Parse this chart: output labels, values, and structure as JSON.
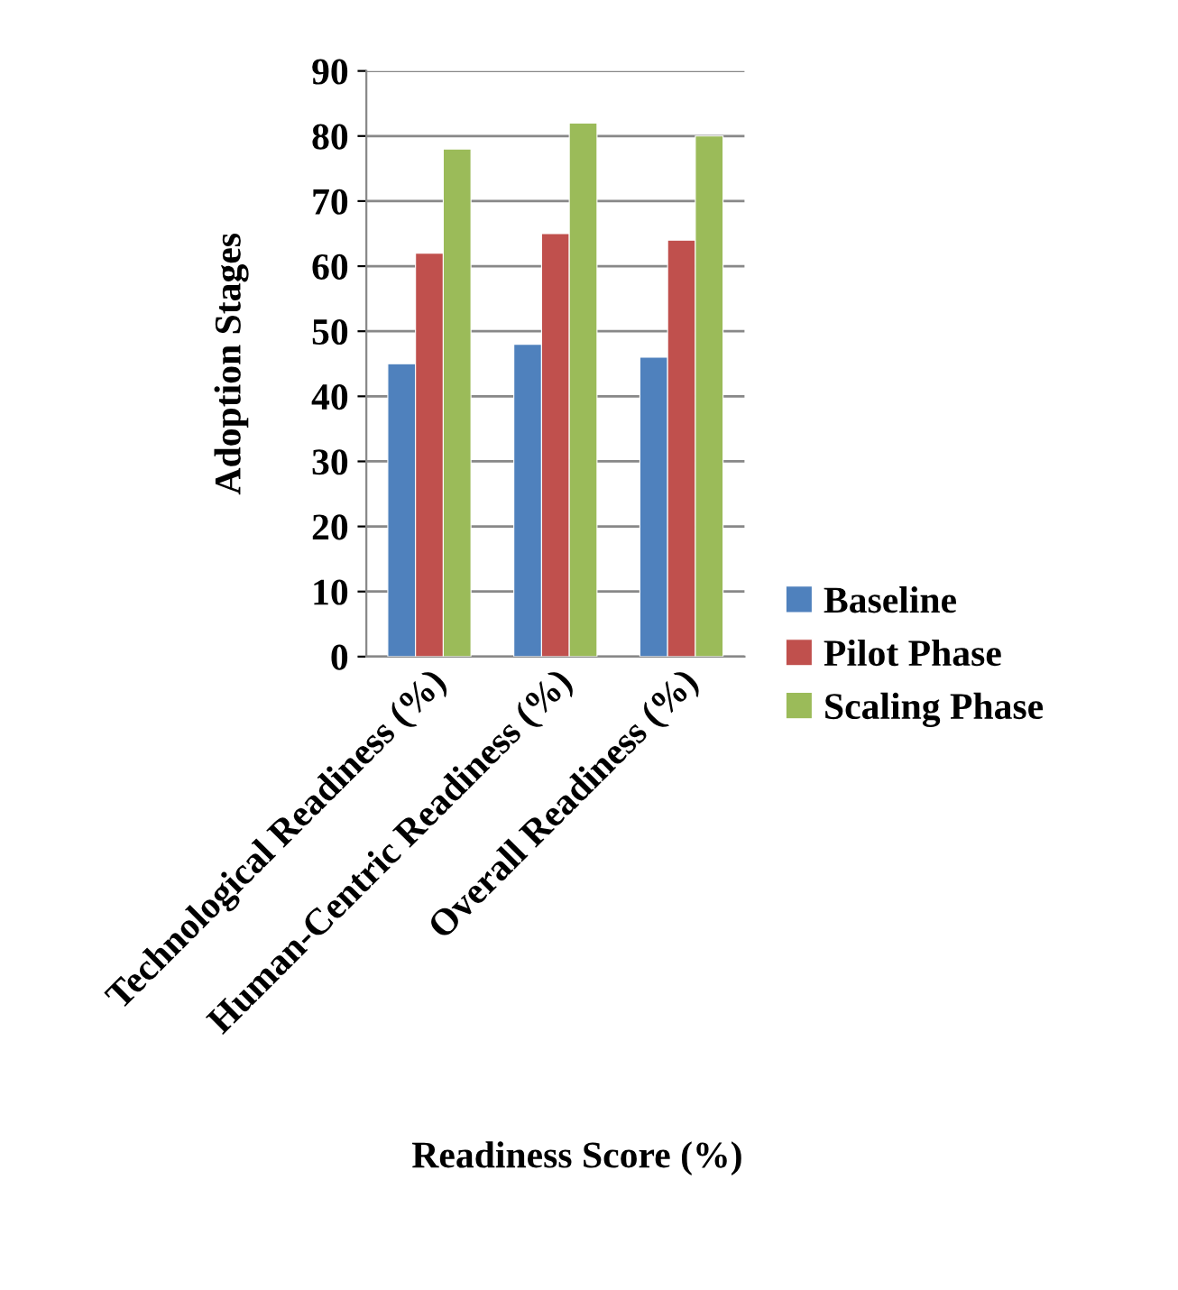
{
  "chart_data": {
    "type": "bar",
    "xlabel": "Readiness Score (%)",
    "ylabel": "Adoption Stages",
    "categories": [
      "Technological Readiness (%)",
      "Human-Centric Readiness (%)",
      "Overall Readiness (%)"
    ],
    "series": [
      {
        "name": "Baseline",
        "color": "#4f81bd",
        "values": [
          45,
          48,
          46
        ]
      },
      {
        "name": "Pilot Phase",
        "color": "#c0504d",
        "values": [
          62,
          65,
          64
        ]
      },
      {
        "name": "Scaling Phase",
        "color": "#9bbb59",
        "values": [
          78,
          82,
          80
        ]
      }
    ],
    "ylim": [
      0,
      90
    ],
    "yticks": [
      0,
      10,
      20,
      30,
      40,
      50,
      60,
      70,
      80,
      90
    ],
    "grid": "y",
    "legend": "right"
  }
}
